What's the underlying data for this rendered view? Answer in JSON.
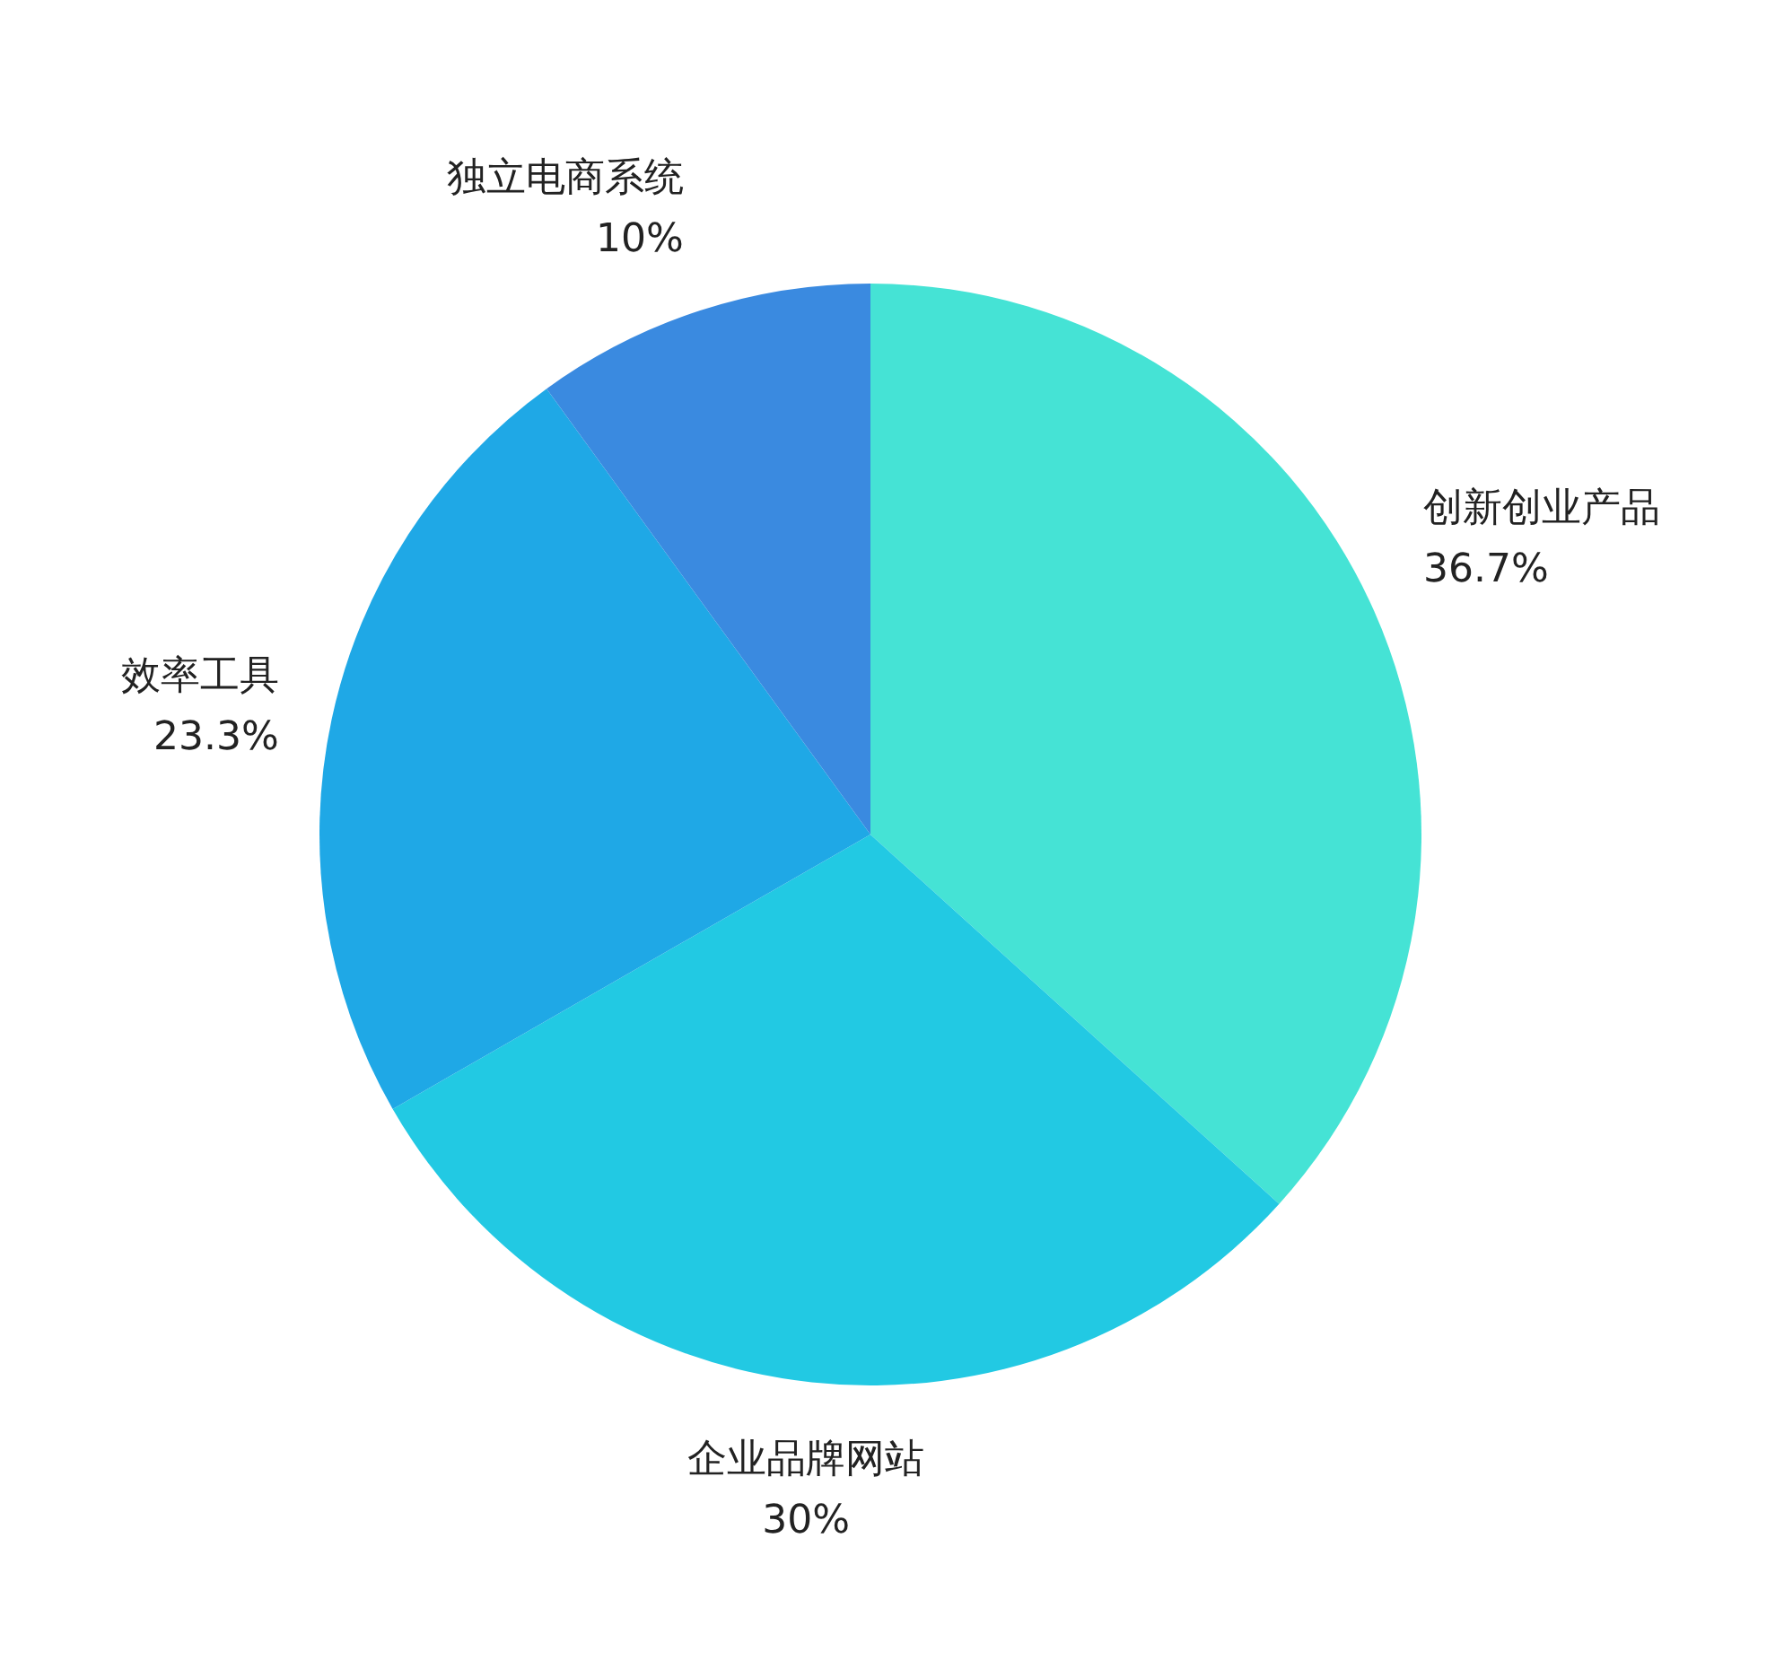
{
  "chart_data": {
    "type": "pie",
    "categories": [
      "创新创业产品",
      "企业品牌网站",
      "效率工具",
      "独立电商系统"
    ],
    "values": [
      36.7,
      30,
      23.3,
      10
    ],
    "colors": [
      "#45e3d5",
      "#22c9e3",
      "#1fa8e6",
      "#3a8ae0"
    ],
    "value_labels": [
      "36.7%",
      "30%",
      "23.3%",
      "10%"
    ],
    "legend": false
  }
}
